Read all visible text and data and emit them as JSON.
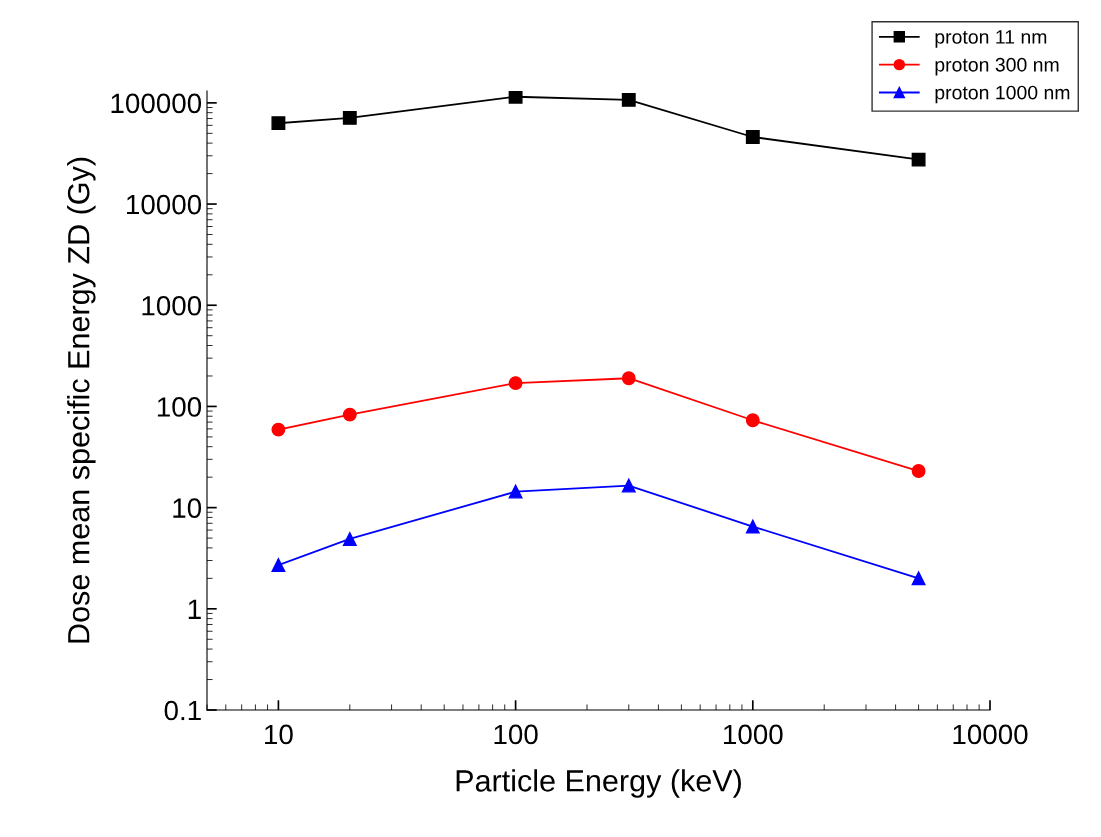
{
  "chart_data": {
    "type": "line",
    "xlabel": "Particle Energy (keV)",
    "ylabel": "Dose mean specific Energy ZD (Gy)",
    "log": "xy",
    "grid": false,
    "legend": "top right",
    "xlim": [
      5,
      10000
    ],
    "xticks": [
      10,
      100,
      1000,
      10000
    ],
    "ylim": [
      0.1,
      131000
    ],
    "yticks": [
      0.1,
      1,
      10,
      100,
      1000,
      10000,
      100000
    ],
    "x": [
      10,
      20,
      100,
      300,
      1000,
      5000
    ],
    "series": [
      {
        "name": "proton 11 nm",
        "color": "#000000",
        "marker": "square",
        "values": [
          63000,
          71000,
          115000,
          107000,
          46000,
          27500
        ]
      },
      {
        "name": "proton 300 nm",
        "color": "#ff0000",
        "marker": "circle",
        "values": [
          59,
          83,
          170,
          190,
          73,
          23
        ]
      },
      {
        "name": "proton 1000 nm",
        "color": "#0000ff",
        "marker": "triangle",
        "values": [
          2.7,
          4.9,
          14.4,
          16.5,
          6.5,
          2.0
        ]
      }
    ]
  }
}
